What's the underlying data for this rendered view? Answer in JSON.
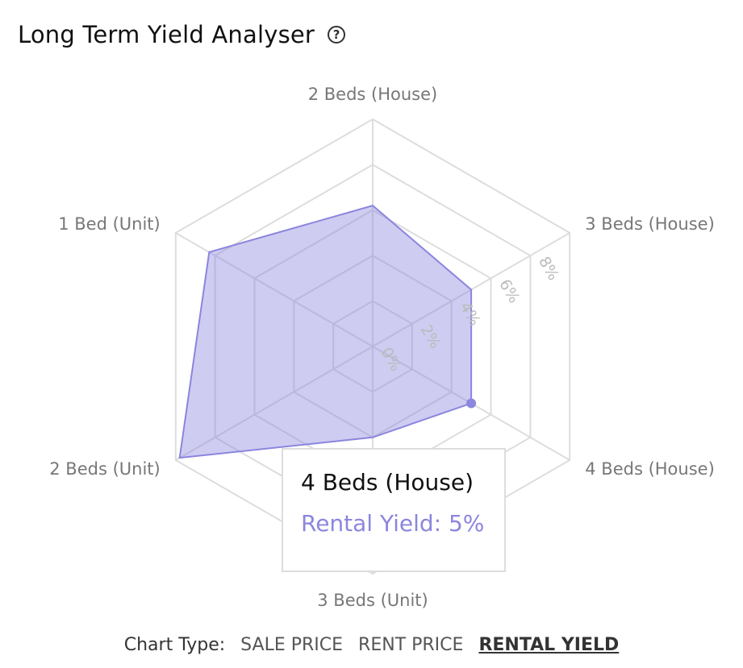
{
  "header": {
    "title": "Long Term Yield Analyser",
    "help_icon": "question-circle-icon"
  },
  "chart_data": {
    "type": "radar",
    "categories": [
      "2 Beds (House)",
      "3 Beds (House)",
      "4 Beds (House)",
      "3 Beds (Unit)",
      "2 Beds (Unit)",
      "1 Bed (Unit)"
    ],
    "series": [
      {
        "values": [
          6.2,
          5.0,
          5.0,
          4.0,
          9.8,
          8.3
        ],
        "color": "#8b86de"
      }
    ],
    "ticks": [
      "0%",
      "2%",
      "4%",
      "6%",
      "8%"
    ],
    "rmax": 10,
    "grid": true
  },
  "tooltip": {
    "title": "4 Beds (House)",
    "value": "Rental Yield: 5%"
  },
  "controls": {
    "label": "Chart Type:",
    "options": [
      {
        "label": "SALE PRICE",
        "active": false
      },
      {
        "label": "RENT PRICE",
        "active": false
      },
      {
        "label": "RENTAL YIELD",
        "active": true
      }
    ]
  }
}
